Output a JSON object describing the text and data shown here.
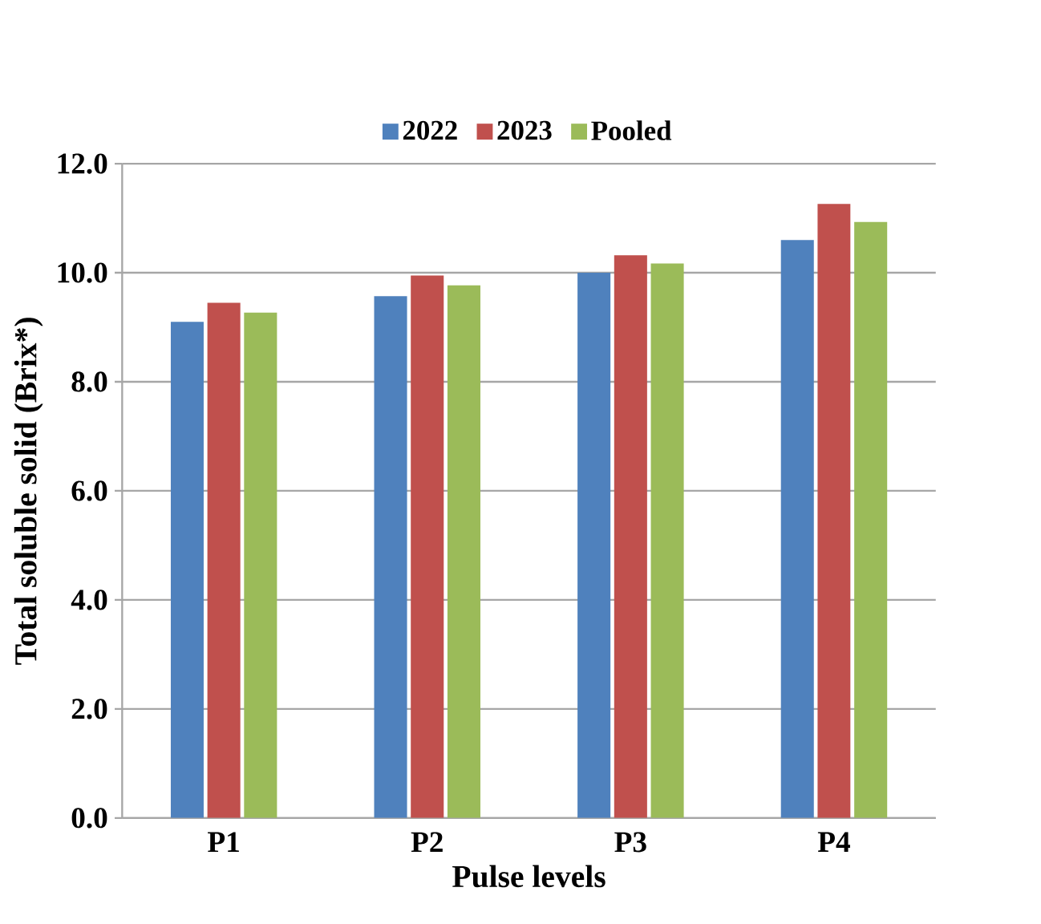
{
  "chart_data": {
    "type": "bar",
    "xlabel": "Pulse levels",
    "ylabel": "Total soluble solid (Brix*)",
    "categories": [
      "P1",
      "P2",
      "P3",
      "P4"
    ],
    "series": [
      {
        "name": "2022",
        "color": "#4f81bd",
        "values": [
          9.1,
          9.57,
          10.0,
          10.6
        ]
      },
      {
        "name": "2023",
        "color": "#c0504d",
        "values": [
          9.45,
          9.95,
          10.32,
          11.26
        ]
      },
      {
        "name": "Pooled",
        "color": "#9bbb59",
        "values": [
          9.27,
          9.77,
          10.17,
          10.93
        ]
      }
    ],
    "ylim": [
      0,
      12
    ],
    "yticks": [
      {
        "value": 0,
        "label": "0.0"
      },
      {
        "value": 2,
        "label": "2.0"
      },
      {
        "value": 4,
        "label": "4.0"
      },
      {
        "value": 6,
        "label": "6.0"
      },
      {
        "value": 8,
        "label": "8.0"
      },
      {
        "value": 10,
        "label": "10.0"
      },
      {
        "value": 12,
        "label": "12.0"
      }
    ],
    "grid": "y",
    "legend": "top"
  }
}
